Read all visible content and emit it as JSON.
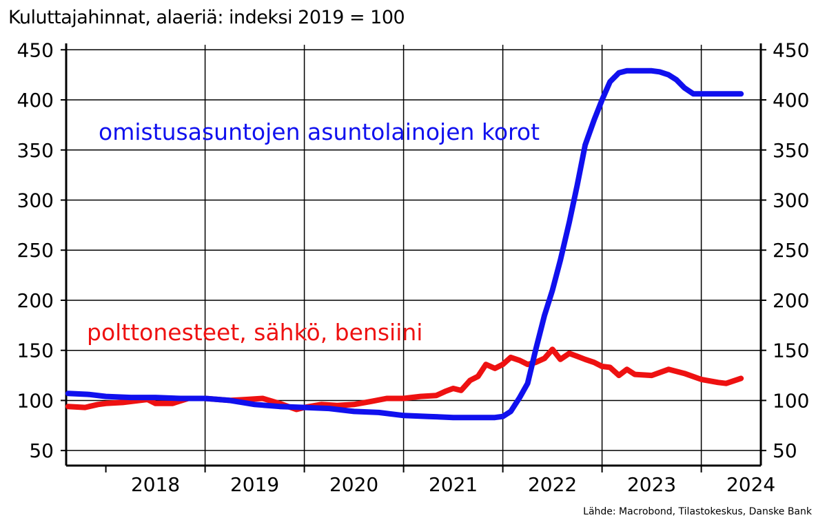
{
  "title": "Kuluttajahinnat, alaeriä: indeksi 2019 = 100",
  "source": "Lähde: Macrobond, Tilastokeskus, Danske Bank",
  "chart_data": {
    "type": "line",
    "title": "Kuluttajahinnat, alaeriä: indeksi 2019 = 100",
    "xlabel": "",
    "ylabel": "",
    "xlim": [
      2017.6,
      2024.6
    ],
    "ylim": [
      35,
      455
    ],
    "y_ticks": [
      50,
      100,
      150,
      200,
      250,
      300,
      350,
      400,
      450
    ],
    "x_tick_labels": [
      "2018",
      "2019",
      "2020",
      "2021",
      "2022",
      "2023",
      "2024"
    ],
    "grid": true,
    "dual_y_axis": true,
    "series": [
      {
        "name": "omistusasuntojen asuntolainojen korot",
        "color": "#1010ee",
        "x": [
          2017.62,
          2017.83,
          2018.0,
          2018.25,
          2018.5,
          2018.75,
          2019.0,
          2019.25,
          2019.5,
          2019.75,
          2020.0,
          2020.25,
          2020.5,
          2020.75,
          2021.0,
          2021.25,
          2021.5,
          2021.75,
          2021.92,
          2022.0,
          2022.08,
          2022.17,
          2022.25,
          2022.33,
          2022.42,
          2022.5,
          2022.58,
          2022.67,
          2022.75,
          2022.83,
          2022.92,
          2023.0,
          2023.08,
          2023.17,
          2023.25,
          2023.33,
          2023.42,
          2023.5,
          2023.58,
          2023.67,
          2023.75,
          2023.83,
          2023.92,
          2024.0,
          2024.08,
          2024.17,
          2024.25,
          2024.33,
          2024.4
        ],
        "values": [
          107,
          106,
          104,
          103,
          103,
          102,
          102,
          100,
          96,
          94,
          93,
          92,
          89,
          88,
          85,
          84,
          83,
          83,
          83,
          84,
          89,
          103,
          117,
          150,
          185,
          210,
          240,
          278,
          315,
          355,
          380,
          400,
          418,
          427,
          429,
          429,
          429,
          429,
          428,
          425,
          420,
          412,
          406,
          406,
          406,
          406,
          406,
          406,
          406
        ]
      },
      {
        "name": "polttonesteet, sähkö, bensiini",
        "color": "#ee1111",
        "x": [
          2017.62,
          2017.79,
          2017.92,
          2018.0,
          2018.17,
          2018.42,
          2018.5,
          2018.67,
          2018.83,
          2019.0,
          2019.25,
          2019.42,
          2019.58,
          2019.75,
          2019.92,
          2020.0,
          2020.17,
          2020.33,
          2020.5,
          2020.67,
          2020.83,
          2021.0,
          2021.17,
          2021.33,
          2021.42,
          2021.5,
          2021.58,
          2021.67,
          2021.75,
          2021.83,
          2021.92,
          2022.0,
          2022.08,
          2022.17,
          2022.25,
          2022.33,
          2022.42,
          2022.5,
          2022.58,
          2022.67,
          2022.75,
          2022.83,
          2022.92,
          2023.0,
          2023.08,
          2023.17,
          2023.25,
          2023.33,
          2023.5,
          2023.67,
          2023.83,
          2024.0,
          2024.17,
          2024.25,
          2024.4
        ],
        "values": [
          94,
          93,
          96,
          97,
          98,
          101,
          97,
          97,
          102,
          102,
          100,
          101,
          102,
          97,
          91,
          93,
          96,
          95,
          96,
          99,
          102,
          102,
          104,
          105,
          109,
          112,
          110,
          120,
          124,
          136,
          132,
          136,
          143,
          140,
          136,
          138,
          142,
          151,
          141,
          147,
          144,
          141,
          138,
          134,
          133,
          125,
          131,
          126,
          125,
          131,
          127,
          121,
          118,
          117,
          122
        ]
      }
    ],
    "annotations": [
      {
        "text": "omistusasuntojen asuntolainojen korot",
        "color": "#1010ee",
        "series": 0
      },
      {
        "text": "polttonesteet, sähkö, bensiini",
        "color": "#ee1111",
        "series": 1
      }
    ]
  }
}
